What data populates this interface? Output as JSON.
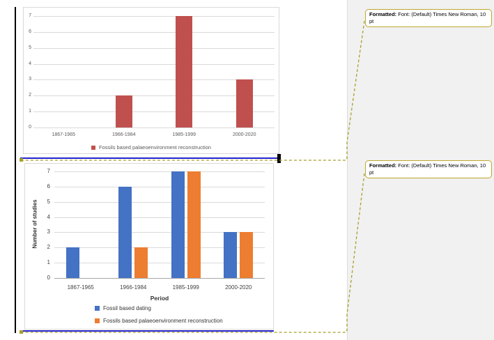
{
  "document": {
    "revision_marks": {
      "change_bar_color": "#000000",
      "insertion_line_color": "#2323CE",
      "markup_dash_color": "#A99F2B"
    }
  },
  "markup_pane": {
    "callouts": [
      {
        "label": "Formatted:",
        "text": " Font: (Default) Times New Roman, 10 pt"
      },
      {
        "label": "Formatted:",
        "text": " Font: (Default) Times New Roman, 10 pt"
      }
    ]
  },
  "chart_data": [
    {
      "type": "bar",
      "title": "",
      "categories": [
        "1867-1965",
        "1966-1984",
        "1985-1999",
        "2000-2020"
      ],
      "series": [
        {
          "name": "Fossils based palaeoenvironment reconstruction",
          "color": "#C0504D",
          "values": [
            0,
            2,
            7,
            3
          ]
        }
      ],
      "xlabel": "",
      "ylabel": "",
      "ylim": [
        0,
        7
      ],
      "ytick_step": 1,
      "grid": true,
      "legend_position": "bottom-center"
    },
    {
      "type": "bar",
      "title": "",
      "categories": [
        "1867-1965",
        "1966-1984",
        "1985-1999",
        "2000-2020"
      ],
      "series": [
        {
          "name": "Fossil based dating",
          "color": "#4472C4",
          "values": [
            2,
            6,
            7,
            3
          ]
        },
        {
          "name": "Fossils based palaeoenvironment reconstruction",
          "color": "#ED7D31",
          "values": [
            0,
            2,
            7,
            3
          ]
        }
      ],
      "xlabel": "Period",
      "ylabel": "Number of studies",
      "ylim": [
        0,
        7
      ],
      "ytick_step": 1,
      "grid": true,
      "legend_position": "bottom-left"
    }
  ]
}
